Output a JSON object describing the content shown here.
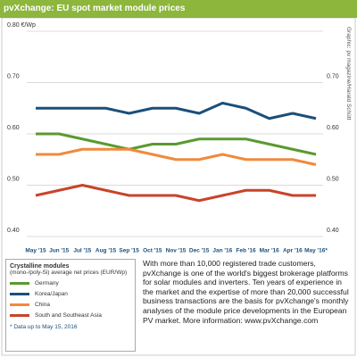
{
  "chart_data": {
    "type": "line",
    "title": "pvXchange: EU spot market module prices",
    "credit": "Graphic: pv magazine/Harald Schütt",
    "categories": [
      "May '15",
      "Jun '15",
      "Jul '15",
      "Aug '15",
      "Sep '15",
      "Oct '15",
      "Nov '15",
      "Dec '15",
      "Jan '16",
      "Feb '16",
      "Mar '16",
      "Apr '16",
      "May '16*"
    ],
    "series": [
      {
        "name": "Germany",
        "color": "#5a9a2e",
        "values": [
          0.6,
          0.6,
          0.59,
          0.58,
          0.57,
          0.58,
          0.58,
          0.59,
          0.59,
          0.59,
          0.58,
          0.57,
          0.56
        ]
      },
      {
        "name": "Korea/Japan",
        "color": "#1b4f7a",
        "values": [
          0.65,
          0.65,
          0.65,
          0.65,
          0.64,
          0.65,
          0.65,
          0.64,
          0.66,
          0.65,
          0.63,
          0.64,
          0.63
        ]
      },
      {
        "name": "China",
        "color": "#f08a3c",
        "values": [
          0.56,
          0.56,
          0.57,
          0.57,
          0.57,
          0.56,
          0.55,
          0.55,
          0.56,
          0.55,
          0.55,
          0.55,
          0.54
        ]
      },
      {
        "name": "South and Southeast Asia",
        "color": "#c8442a",
        "values": [
          0.48,
          0.49,
          0.5,
          0.49,
          0.48,
          0.48,
          0.48,
          0.47,
          0.48,
          0.49,
          0.49,
          0.48,
          0.48
        ]
      }
    ],
    "ylim": [
      0.4,
      0.8
    ],
    "yticks": [
      {
        "value": 0.8,
        "label": "0.80 €/Wp"
      },
      {
        "value": 0.7,
        "label": "0.70"
      },
      {
        "value": 0.6,
        "label": "0.60"
      },
      {
        "value": 0.5,
        "label": "0.50"
      },
      {
        "value": 0.4,
        "label": "0.40"
      }
    ],
    "grid": true,
    "legend_title": "Crystalline modules",
    "legend_subtitle": "(mono-/poly-Si) average net prices (EUR/Wp)",
    "note": "* Data up to May 15, 2016",
    "description": "With more than 10,000 registered trade customers, pvXchange is one of the world's biggest brokerage platforms for solar modules and inverters. Ten years of experience in the market and the expertise of more than 20,000 successful business transactions are the basis for pvXchange's monthly analyses of the module price developments in the European PV market. More information: www.pvXchange.com"
  }
}
